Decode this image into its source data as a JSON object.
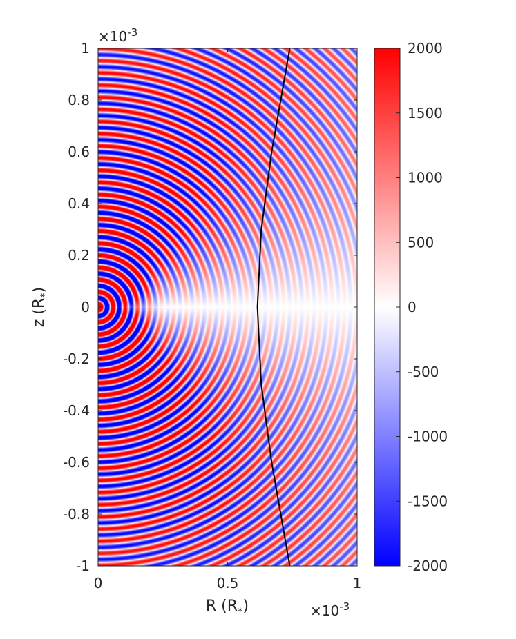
{
  "chart_data": {
    "type": "heatmap",
    "title": "",
    "xlabel": "R (R",
    "xlabel_sub": "*",
    "xlabel_close": ")",
    "ylabel": "z (R",
    "ylabel_sub": "*",
    "ylabel_close": ")",
    "xlim": [
      0,
      1
    ],
    "ylim": [
      -1,
      1
    ],
    "x_exponent": "×10",
    "x_exponent_power": "-3",
    "y_exponent": "×10",
    "y_exponent_power": "-3",
    "x_ticks": [
      {
        "value": 0,
        "label": "0"
      },
      {
        "value": 0.5,
        "label": "0.5"
      },
      {
        "value": 1,
        "label": "1"
      }
    ],
    "y_ticks": [
      {
        "value": 1,
        "label": "1"
      },
      {
        "value": 0.8,
        "label": "0.8"
      },
      {
        "value": 0.6,
        "label": "0.6"
      },
      {
        "value": 0.4,
        "label": "0.4"
      },
      {
        "value": 0.2,
        "label": "0.2"
      },
      {
        "value": 0,
        "label": "0"
      },
      {
        "value": -0.2,
        "label": "-0.2"
      },
      {
        "value": -0.4,
        "label": "-0.4"
      },
      {
        "value": -0.6,
        "label": "-0.6"
      },
      {
        "value": -0.8,
        "label": "-0.8"
      },
      {
        "value": -1,
        "label": "-1"
      }
    ],
    "colorbar": {
      "min": -2000,
      "max": 2000,
      "colormap": [
        "#0000ff",
        "#ffffff",
        "#ff0000"
      ],
      "ticks": [
        {
          "value": 2000,
          "label": "2000"
        },
        {
          "value": 1500,
          "label": "1500"
        },
        {
          "value": 1000,
          "label": "1000"
        },
        {
          "value": 500,
          "label": "500"
        },
        {
          "value": 0,
          "label": "0"
        },
        {
          "value": -500,
          "label": "-500"
        },
        {
          "value": -1000,
          "label": "-1000"
        },
        {
          "value": -1500,
          "label": "-1500"
        },
        {
          "value": -2000,
          "label": "-2000"
        }
      ]
    },
    "field": {
      "description_of_pattern": "concentric wave rings centred at origin, amplitude largest on z axis and vanishing near z=0 far from origin",
      "center": [
        0,
        0
      ],
      "ring_wavelength": 0.047,
      "amplitude": 2000
    },
    "curve": {
      "color": "#000000",
      "points": [
        [
          0.74,
          1.0
        ],
        [
          0.67,
          0.6
        ],
        [
          0.63,
          0.3
        ],
        [
          0.615,
          0.0
        ],
        [
          0.63,
          -0.3
        ],
        [
          0.67,
          -0.6
        ],
        [
          0.74,
          -1.0
        ]
      ]
    },
    "grid": false
  }
}
